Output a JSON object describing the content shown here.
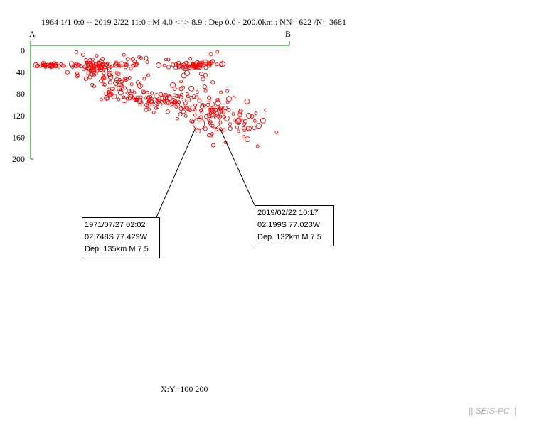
{
  "header": {
    "text": "1964 1/1 0:0 -- 2019 2/22 11:0 :  M 4.0 <=> 8.9   :  Dep 0.0 - 200.0km :  NN= 622 /N= 3681"
  },
  "section": {
    "start_label": "A",
    "end_label": "B"
  },
  "scale_text": "X:Y=100 200",
  "credit": "|| SEIS-PC ||",
  "colors": {
    "events": "#ff0000",
    "axis": "#008000",
    "text": "#000000",
    "credit": "#b0b0b0"
  },
  "chart_data": {
    "type": "scatter",
    "ylabel": "",
    "xlabel": "",
    "ylim": [
      0,
      200
    ],
    "y_inverted": true,
    "yticks": [
      "0",
      "40",
      "80",
      "120",
      "160",
      "200"
    ],
    "ytick_values": [
      0,
      40,
      80,
      120,
      160,
      200
    ],
    "xlim": [
      0,
      100
    ],
    "grid": false,
    "highlights": [
      {
        "date": "1971/07/27 02:02",
        "location": "02.748S   77.429W",
        "depth_mag": "Dep. 135km    M 7.5",
        "x": 65,
        "depth": 135,
        "mag": 7.5
      },
      {
        "date": "2019/02/22 10:17",
        "location": "02.199S   77.023W",
        "depth_mag": "Dep. 132km    M 7.5",
        "x": 71,
        "depth": 132,
        "mag": 7.5
      }
    ]
  }
}
